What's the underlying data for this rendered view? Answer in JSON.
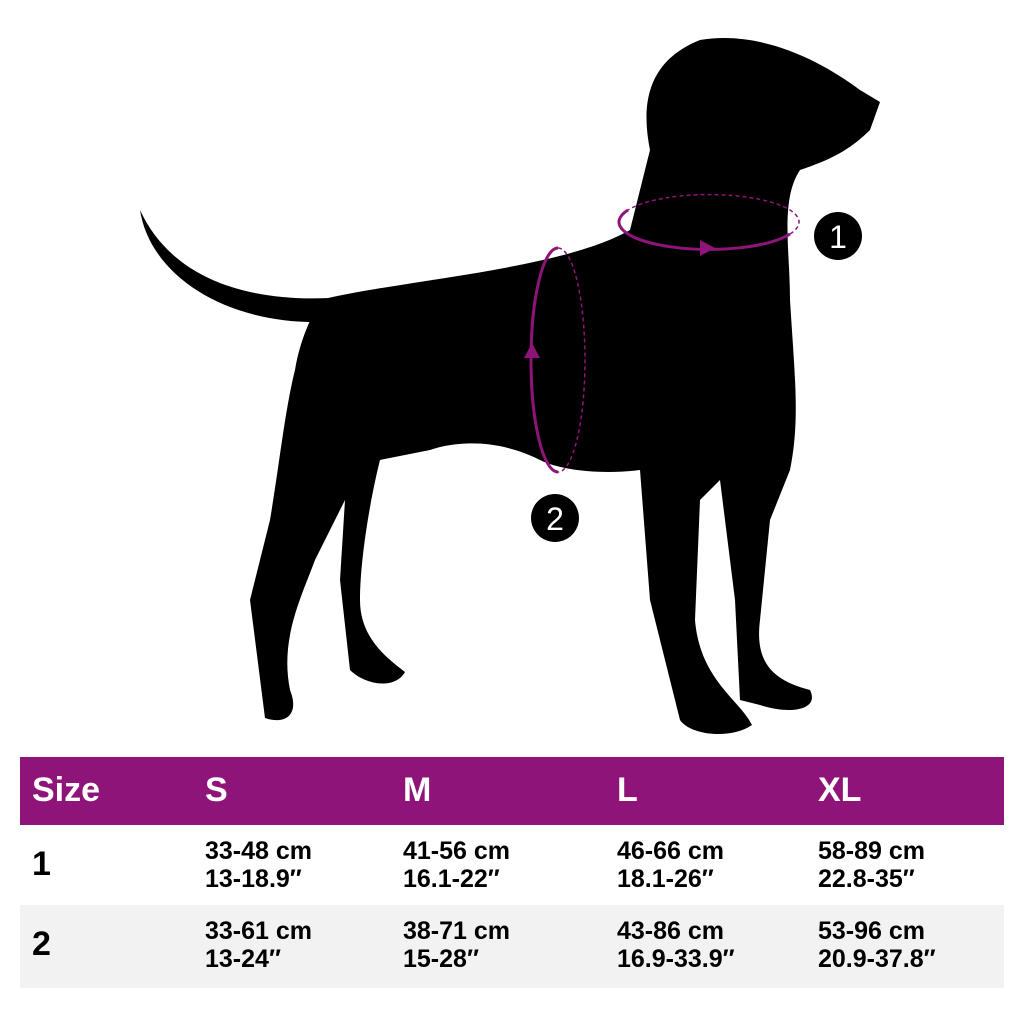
{
  "colors": {
    "accent": "#8f1479",
    "silhouette": "#000000",
    "row_alt": "#f2f2f2"
  },
  "markers": {
    "neck": "1",
    "chest": "2"
  },
  "table": {
    "header": [
      "Size",
      "S",
      "M",
      "L",
      "XL"
    ],
    "rows": [
      {
        "label": "1",
        "cells": [
          {
            "cm": "33-48 cm",
            "in": "13-18.9″"
          },
          {
            "cm": "41-56 cm",
            "in": "16.1-22″"
          },
          {
            "cm": "46-66 cm",
            "in": "18.1-26″"
          },
          {
            "cm": "58-89 cm",
            "in": "22.8-35″"
          }
        ]
      },
      {
        "label": "2",
        "cells": [
          {
            "cm": "33-61 cm",
            "in": "13-24″"
          },
          {
            "cm": "38-71 cm",
            "in": "15-28″"
          },
          {
            "cm": "43-86 cm",
            "in": "16.9-33.9″"
          },
          {
            "cm": "53-96 cm",
            "in": "20.9-37.8″"
          }
        ]
      }
    ]
  }
}
